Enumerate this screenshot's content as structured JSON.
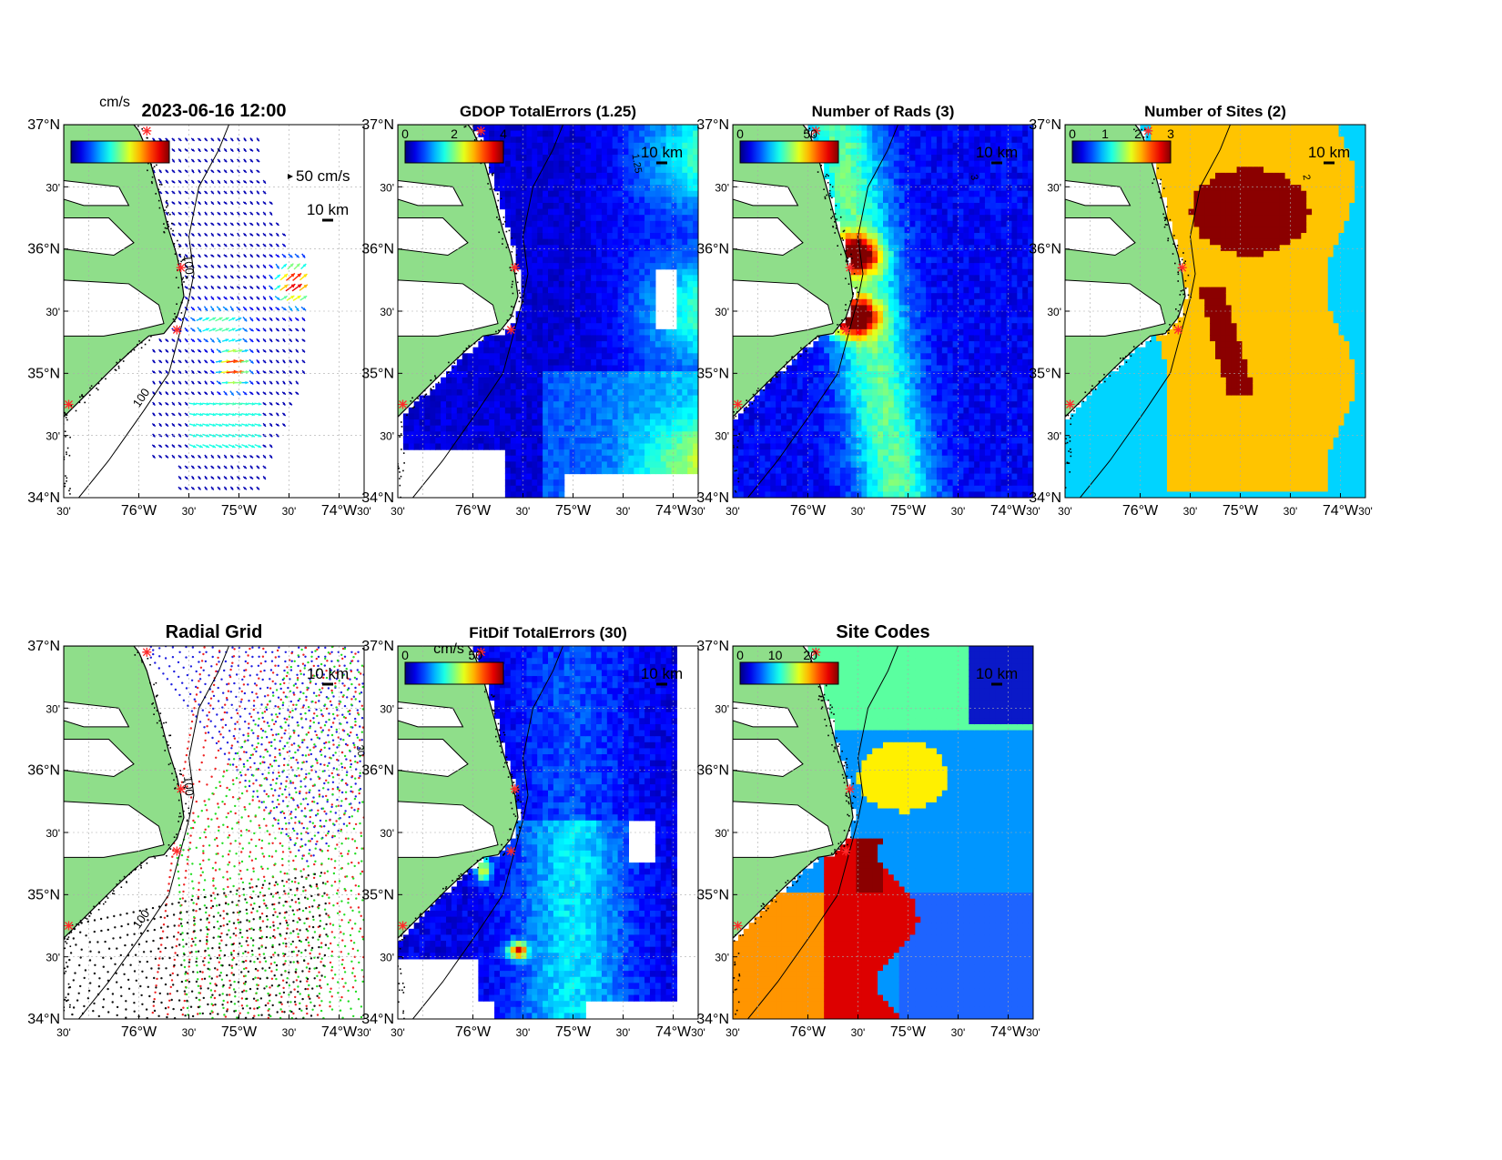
{
  "colors": {
    "land": "#8fde8a",
    "ocean": "#ffffff",
    "coast": "#000000",
    "site": "#ff2a2a"
  },
  "axes_ticks": {
    "lat_major": [
      "37°N",
      "36°N",
      "35°N",
      "34°N"
    ],
    "lat_minor": "30'",
    "lon_major": [
      "76°W",
      "75°W",
      "74°W"
    ],
    "lon_minor": "30'"
  },
  "scale_label": "10 km",
  "isobath_label": "100",
  "chart_data": [
    {
      "type": "heatmap",
      "id": "vectors",
      "title": "2023-06-16 12:00",
      "units": "cm/s",
      "ref_arrow_label": "50 cm/s",
      "colorbar": {
        "ticks": [],
        "colormap": "jet"
      },
      "xlim": [
        -76.75,
        -73.75
      ],
      "ylim": [
        34,
        37
      ],
      "grid": true
    },
    {
      "type": "heatmap",
      "id": "gdop",
      "title": "GDOP TotalErrors (1.25)",
      "contour_label": "1.25",
      "colorbar": {
        "ticks": [
          "0",
          "2",
          "4"
        ],
        "range": [
          0,
          4
        ],
        "colormap": "jet"
      },
      "xlim": [
        -76.75,
        -73.75
      ],
      "ylim": [
        34,
        37
      ],
      "grid": true
    },
    {
      "type": "heatmap",
      "id": "nrads",
      "title": "Number of Rads (3)",
      "contour_label": "3",
      "colorbar": {
        "ticks": [
          "0",
          "50"
        ],
        "range": [
          0,
          70
        ],
        "colormap": "jet"
      },
      "xlim": [
        -76.75,
        -73.75
      ],
      "ylim": [
        34,
        37
      ],
      "grid": true
    },
    {
      "type": "heatmap",
      "id": "nsites",
      "title": "Number of Sites (2)",
      "contour_label": "2",
      "colorbar": {
        "ticks": [
          "0",
          "1",
          "2",
          "3"
        ],
        "range": [
          0,
          3
        ],
        "colormap": "jet"
      },
      "xlim": [
        -76.75,
        -73.75
      ],
      "ylim": [
        34,
        37
      ],
      "grid": true
    },
    {
      "type": "scatter",
      "id": "radgrid",
      "title": "Radial Grid",
      "series_colors": [
        "#1f1fe0",
        "#ee2222",
        "#22dd22",
        "#111111"
      ],
      "xlim": [
        -76.75,
        -73.75
      ],
      "ylim": [
        34,
        37
      ],
      "grid": true
    },
    {
      "type": "heatmap",
      "id": "fitdif",
      "title": "FitDif TotalErrors (30)",
      "units": "cm/s",
      "contour_label": "30",
      "colorbar": {
        "ticks": [
          "0",
          "50"
        ],
        "range": [
          0,
          70
        ],
        "colormap": "jet"
      },
      "xlim": [
        -76.75,
        -73.75
      ],
      "ylim": [
        34,
        37
      ],
      "grid": true
    },
    {
      "type": "heatmap",
      "id": "sitecodes",
      "title": "Site Codes",
      "colorbar": {
        "ticks": [
          "0",
          "10",
          "20"
        ],
        "range": [
          0,
          28
        ],
        "colormap": "jet"
      },
      "xlim": [
        -76.75,
        -73.75
      ],
      "ylim": [
        34,
        37
      ],
      "grid": true
    }
  ]
}
